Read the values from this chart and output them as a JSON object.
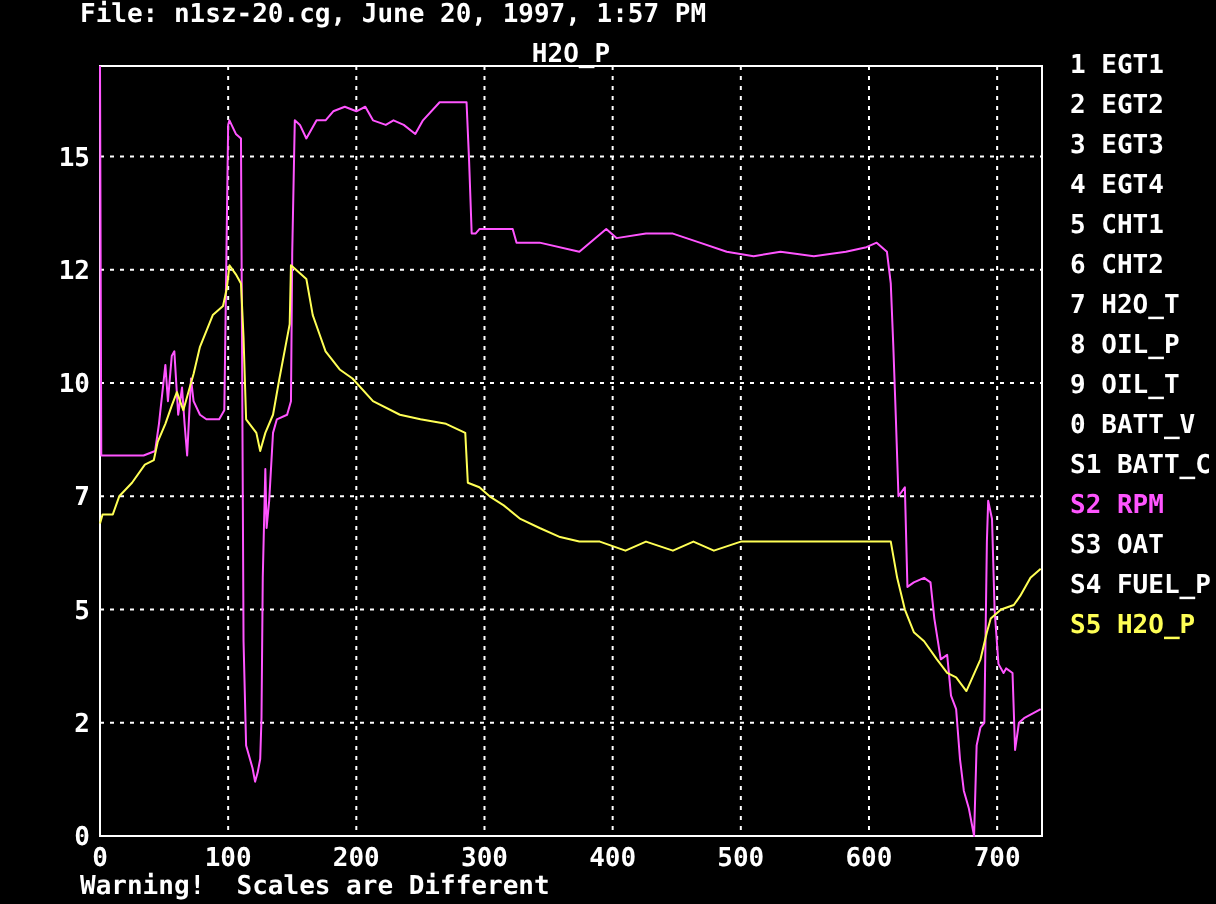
{
  "chart_data": {
    "type": "line",
    "title": "File: n1sz-20.cg, June 20, 1997, 1:57 PM",
    "subtitle": "H2O_P",
    "annotations": [
      "Warning!  Scales are Different"
    ],
    "xlim": [
      0,
      735
    ],
    "xticks": [
      0,
      100,
      200,
      300,
      400,
      500,
      600,
      700
    ],
    "ylim": [
      0,
      17
    ],
    "yticks": [
      0,
      {
        "value": 2.5,
        "label": "2"
      },
      5,
      {
        "value": 7.5,
        "label": "7"
      },
      10,
      {
        "value": 12.5,
        "label": "12"
      },
      15
    ],
    "grid": true,
    "legend": "right",
    "series": [
      {
        "name": "1 EGT1",
        "color": "#ffffff"
      },
      {
        "name": "2 EGT2",
        "color": "#ffffff"
      },
      {
        "name": "3 EGT3",
        "color": "#ffffff"
      },
      {
        "name": "4 EGT4",
        "color": "#ffffff"
      },
      {
        "name": "5 CHT1",
        "color": "#ffffff"
      },
      {
        "name": "6 CHT2",
        "color": "#ffffff"
      },
      {
        "name": "7 H2O_T",
        "color": "#ffffff"
      },
      {
        "name": "8 OIL_P",
        "color": "#ffffff"
      },
      {
        "name": "9 OIL_T",
        "color": "#ffffff"
      },
      {
        "name": "0 BATT_V",
        "color": "#ffffff"
      },
      {
        "name": "S1 BATT_C",
        "color": "#ffffff"
      },
      {
        "name": "S2 RPM",
        "color": "#ff55ff",
        "x": [
          0,
          1,
          20,
          34,
          43,
          46,
          51,
          53,
          56,
          58,
          61,
          64,
          66,
          68,
          71,
          73,
          78,
          83,
          93,
          97,
          100,
          101,
          106,
          110,
          112,
          114,
          117,
          119,
          121,
          123,
          125,
          126,
          127,
          129,
          130,
          132,
          135,
          138,
          146,
          149,
          150,
          152,
          156,
          161,
          169,
          176,
          182,
          191,
          200,
          207,
          213,
          223,
          229,
          237,
          246,
          252,
          265,
          286,
          288,
          290,
          293,
          296,
          322,
          325,
          343,
          374,
          395,
          403,
          426,
          447,
          468,
          489,
          510,
          531,
          557,
          582,
          598,
          606,
          614,
          617,
          619,
          621,
          623,
          628,
          630,
          635,
          643,
          648,
          651,
          656,
          661,
          664,
          668,
          671,
          674,
          678,
          682,
          684,
          687,
          690,
          692,
          693,
          696,
          698,
          701,
          705,
          707,
          712,
          714,
          717,
          721,
          734
        ],
        "values": [
          17,
          8.4,
          8.4,
          8.4,
          8.5,
          9.1,
          10.4,
          9.6,
          10.6,
          10.7,
          9.3,
          9.9,
          9.1,
          8.4,
          10.1,
          9.6,
          9.3,
          9.2,
          9.2,
          9.4,
          15.7,
          15.8,
          15.5,
          15.4,
          4.3,
          2.0,
          1.7,
          1.5,
          1.2,
          1.4,
          1.7,
          2.6,
          5.7,
          8.1,
          6.8,
          7.4,
          8.9,
          9.2,
          9.3,
          9.6,
          12.9,
          15.8,
          15.7,
          15.4,
          15.8,
          15.8,
          16.0,
          16.1,
          16.0,
          16.1,
          15.8,
          15.7,
          15.8,
          15.7,
          15.5,
          15.8,
          16.2,
          16.2,
          14.9,
          13.3,
          13.3,
          13.4,
          13.4,
          13.1,
          13.1,
          12.9,
          13.4,
          13.2,
          13.3,
          13.3,
          13.1,
          12.9,
          12.8,
          12.9,
          12.8,
          12.9,
          13.0,
          13.1,
          12.9,
          12.2,
          10.8,
          9.2,
          7.5,
          7.7,
          5.5,
          5.6,
          5.7,
          5.6,
          4.8,
          3.9,
          4.0,
          3.1,
          2.8,
          1.7,
          1.0,
          0.6,
          0,
          2.0,
          2.4,
          2.5,
          6.5,
          7.4,
          7.0,
          5.0,
          3.8,
          3.6,
          3.7,
          3.6,
          1.9,
          2.5,
          2.6,
          2.8
        ]
      },
      {
        "name": "S3 OAT",
        "color": "#ffffff"
      },
      {
        "name": "S4 FUEL_P",
        "color": "#ffffff"
      },
      {
        "name": "S5 H2O_P",
        "color": "#ffff55",
        "x": [
          0,
          2,
          10,
          15,
          25,
          35,
          42,
          45,
          51,
          56,
          60,
          65,
          70,
          73,
          78,
          88,
          96,
          99,
          101,
          106,
          110,
          112,
          114,
          122,
          125,
          129,
          135,
          140,
          148,
          149,
          161,
          166,
          171,
          176,
          187,
          197,
          213,
          234,
          250,
          270,
          285,
          287,
          296,
          304,
          315,
          328,
          343,
          359,
          374,
          390,
          410,
          426,
          447,
          463,
          479,
          500,
          520,
          541,
          582,
          617,
          622,
          628,
          635,
          643,
          653,
          661,
          668,
          676,
          687,
          692,
          695,
          703,
          713,
          718,
          726,
          734
        ],
        "values": [
          6.9,
          7.1,
          7.1,
          7.5,
          7.8,
          8.2,
          8.3,
          8.7,
          9.1,
          9.5,
          9.8,
          9.4,
          9.9,
          10.2,
          10.8,
          11.5,
          11.7,
          12.1,
          12.6,
          12.4,
          12.2,
          11.0,
          9.2,
          8.9,
          8.5,
          8.9,
          9.3,
          10.1,
          11.3,
          12.6,
          12.3,
          11.5,
          11.1,
          10.7,
          10.3,
          10.1,
          9.6,
          9.3,
          9.2,
          9.1,
          8.9,
          7.8,
          7.7,
          7.5,
          7.3,
          7.0,
          6.8,
          6.6,
          6.5,
          6.5,
          6.3,
          6.5,
          6.3,
          6.5,
          6.3,
          6.5,
          6.5,
          6.5,
          6.5,
          6.5,
          5.7,
          5.0,
          4.5,
          4.3,
          3.9,
          3.6,
          3.5,
          3.2,
          3.9,
          4.5,
          4.8,
          5.0,
          5.1,
          5.3,
          5.7,
          5.9
        ]
      }
    ]
  }
}
